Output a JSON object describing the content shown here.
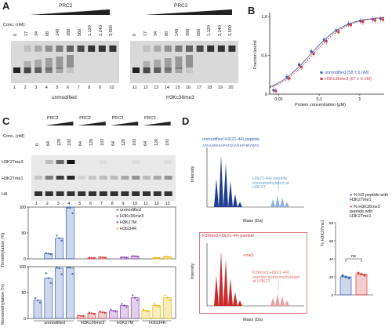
{
  "panels": {
    "A": "A",
    "B": "B",
    "C": "C",
    "D": "D"
  },
  "panelA": {
    "prc2": "PRC2",
    "conc_label": "Conc. (nM):",
    "concs": [
      "0",
      "17",
      "34",
      "68",
      "140",
      "280",
      "560",
      "1,120",
      "2,240",
      "3,500"
    ],
    "lanes_left": [
      "1",
      "2",
      "3",
      "4",
      "5",
      "6",
      "7",
      "8",
      "9",
      "10"
    ],
    "lanes_right": [
      "11",
      "12",
      "13",
      "14",
      "15",
      "16",
      "17",
      "18",
      "19",
      "20"
    ],
    "label_left": "unmodified",
    "label_right": "H3Kc36me3"
  },
  "panelB": {
    "ylabel": "Fraction bound",
    "xlabel": "Protein concentration (μM)",
    "yticks": [
      "0",
      "0,5",
      "1,0"
    ],
    "xticks": [
      "0,01",
      "0,1",
      "1"
    ],
    "legend": [
      "unmodified (58 ± 6 nM)",
      "H3Kc36me3 (67 ± 6 nM)"
    ]
  },
  "panelC": {
    "prc2": "PRC2",
    "conc_label": "Conc. (nM)",
    "concs": [
      "0",
      "64",
      "120",
      "192",
      "64",
      "120",
      "192",
      "64",
      "120",
      "192",
      "64",
      "120",
      "192"
    ],
    "lanes": [
      "1",
      "2",
      "3",
      "4",
      "5",
      "6",
      "7",
      "8",
      "9",
      "10",
      "11",
      "12",
      "13"
    ],
    "blots": [
      "H3K27me3",
      "H3K27me1",
      "H4"
    ],
    "legend": [
      "unmodified",
      "H3Kc36me3",
      "H3K27M",
      "H3G34R"
    ],
    "legend_display": [
      "unmodified",
      "H3Kc36me3",
      "H3K27M",
      "H3G34R"
    ],
    "ylabel_top": "Trimethylation (%)",
    "ylabel_bottom": "Monomethylation (%)",
    "yticks_top": [
      "0",
      "50",
      "100"
    ],
    "yticks_bottom": [
      "0",
      "50",
      "100"
    ],
    "groups": [
      "unmodified",
      "H3Kc36me3",
      "H3K27M",
      "H3G34R"
    ]
  },
  "panelD": {
    "top_title": "unmodified H3(21-44) peptide",
    "top_seq": "ATKAARKSAPATGGVKKPHRYRPG",
    "top_annot": "H3(21-44) peptide monomethylated at H3K27",
    "bottom_title": "K36me3 H3(21-44) peptide",
    "bottom_annot": "K36me3 H3(21-44) peptide monomethylated at H3K27",
    "bottom_me1": "+me1",
    "ylabel": "Intensity",
    "xlabel": "Mass (Da)",
    "bar_ylabel": "% H3K27me1",
    "bar_legend": [
      "% H3 peptide with H3K27me1",
      "% H3K36me3 peptide with H3K27me1"
    ],
    "ns": "ns",
    "bar_yticks": [
      "0",
      "20",
      "40",
      "60",
      "80"
    ]
  },
  "chart_data": [
    {
      "type": "scatter",
      "title": "",
      "xlabel": "Protein concentration (μM)",
      "ylabel": "Fraction bound",
      "xscale": "log",
      "xlim": [
        0.006,
        4
      ],
      "ylim": [
        0,
        1.05
      ],
      "series": [
        {
          "name": "unmodified (58 ± 6 nM)",
          "color": "#3a5fb0",
          "x": [
            0.008,
            0.017,
            0.034,
            0.068,
            0.14,
            0.28,
            0.56,
            1.12,
            2.24,
            3.5
          ],
          "y": [
            0.05,
            0.22,
            0.38,
            0.55,
            0.7,
            0.82,
            0.9,
            0.94,
            0.96,
            0.97
          ]
        },
        {
          "name": "H3Kc36me3 (67 ± 6 nM)",
          "color": "#d43a3a",
          "x": [
            0.008,
            0.017,
            0.034,
            0.068,
            0.14,
            0.28,
            0.56,
            1.12,
            2.24,
            3.5
          ],
          "y": [
            0.04,
            0.2,
            0.35,
            0.52,
            0.68,
            0.8,
            0.89,
            0.93,
            0.95,
            0.96
          ]
        }
      ]
    },
    {
      "type": "bar",
      "title": "",
      "ylabel": "Trimethylation (%)",
      "ylim": [
        0,
        100
      ],
      "categories": [
        "1",
        "2",
        "3",
        "4",
        "5",
        "6",
        "7",
        "8",
        "9",
        "10",
        "11",
        "12",
        "13"
      ],
      "values": [
        0,
        10,
        40,
        100,
        0,
        2,
        3,
        0,
        3,
        5,
        0,
        2,
        4
      ],
      "colors": [
        "#3a5fb0",
        "#3a5fb0",
        "#3a5fb0",
        "#3a5fb0",
        "#d43a3a",
        "#d43a3a",
        "#d43a3a",
        "#8a3fb0",
        "#8a3fb0",
        "#8a3fb0",
        "#e6b800",
        "#e6b800",
        "#e6b800"
      ]
    },
    {
      "type": "bar",
      "title": "",
      "ylabel": "Monomethylation (%)",
      "ylim": [
        0,
        100
      ],
      "categories": [
        "1",
        "2",
        "3",
        "4",
        "5",
        "6",
        "7",
        "8",
        "9",
        "10",
        "11",
        "12",
        "13"
      ],
      "values": [
        35,
        78,
        97,
        98,
        5,
        10,
        12,
        15,
        25,
        40,
        15,
        25,
        40
      ],
      "colors": [
        "#3a5fb0",
        "#3a5fb0",
        "#3a5fb0",
        "#3a5fb0",
        "#d43a3a",
        "#d43a3a",
        "#d43a3a",
        "#8a3fb0",
        "#8a3fb0",
        "#8a3fb0",
        "#e6b800",
        "#e6b800",
        "#e6b800"
      ]
    },
    {
      "type": "bar",
      "title": "",
      "ylabel": "% H3K27me1",
      "ylim": [
        0,
        80
      ],
      "categories": [
        "% H3 peptide with H3K27me1",
        "% H3K36me3 peptide with H3K27me1"
      ],
      "values": [
        20,
        23
      ],
      "colors": [
        "#3a5fb0",
        "#d43a3a"
      ]
    }
  ]
}
